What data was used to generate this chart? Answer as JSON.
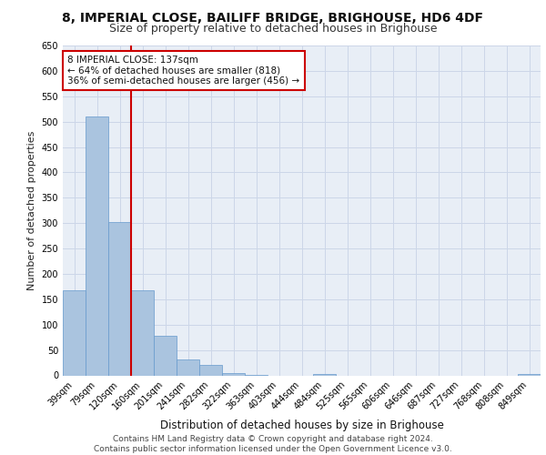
{
  "title1": "8, IMPERIAL CLOSE, BAILIFF BRIDGE, BRIGHOUSE, HD6 4DF",
  "title2": "Size of property relative to detached houses in Brighouse",
  "xlabel": "Distribution of detached houses by size in Brighouse",
  "ylabel": "Number of detached properties",
  "bar_labels": [
    "39sqm",
    "79sqm",
    "120sqm",
    "160sqm",
    "201sqm",
    "241sqm",
    "282sqm",
    "322sqm",
    "363sqm",
    "403sqm",
    "444sqm",
    "484sqm",
    "525sqm",
    "565sqm",
    "606sqm",
    "646sqm",
    "687sqm",
    "727sqm",
    "768sqm",
    "808sqm",
    "849sqm"
  ],
  "bar_values": [
    168,
    510,
    303,
    168,
    78,
    32,
    20,
    5,
    1,
    0,
    0,
    2,
    0,
    0,
    0,
    0,
    0,
    0,
    0,
    0,
    3
  ],
  "bar_color": "#aac4df",
  "bar_edge_color": "#6699cc",
  "grid_color": "#ccd6e8",
  "background_color": "#e8eef6",
  "vline_x": 2.5,
  "vline_color": "#cc0000",
  "annotation_text": "8 IMPERIAL CLOSE: 137sqm\n← 64% of detached houses are smaller (818)\n36% of semi-detached houses are larger (456) →",
  "annotation_box_color": "#cc0000",
  "ylim": [
    0,
    650
  ],
  "yticks": [
    0,
    50,
    100,
    150,
    200,
    250,
    300,
    350,
    400,
    450,
    500,
    550,
    600,
    650
  ],
  "footer_text": "Contains HM Land Registry data © Crown copyright and database right 2024.\nContains public sector information licensed under the Open Government Licence v3.0.",
  "title1_fontsize": 10,
  "title2_fontsize": 9,
  "axis_label_fontsize": 8,
  "tick_fontsize": 7,
  "footer_fontsize": 6.5,
  "annotation_fontsize": 7.5
}
